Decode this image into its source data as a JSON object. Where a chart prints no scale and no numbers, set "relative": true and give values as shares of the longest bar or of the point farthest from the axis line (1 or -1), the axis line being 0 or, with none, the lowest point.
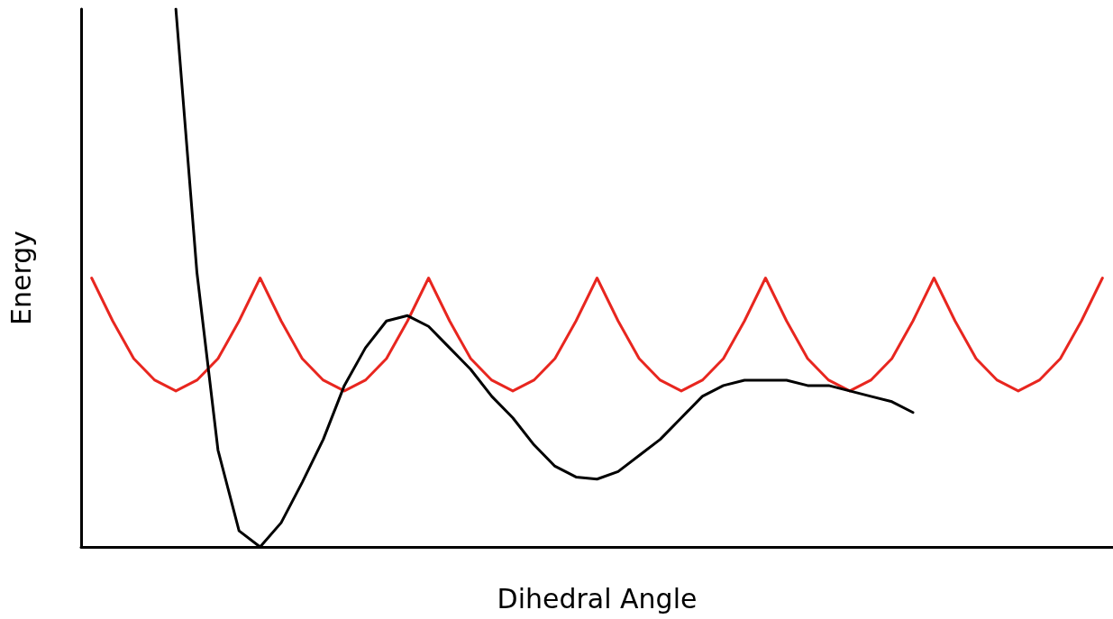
{
  "chart_data": {
    "type": "line",
    "xlabel": "Dihedral Angle",
    "ylabel": "Energy",
    "relative": true,
    "grid": false,
    "marker": "none",
    "line_style": "solid",
    "categories": [
      null,
      null,
      null,
      null,
      null,
      null,
      null,
      null,
      null,
      null,
      null,
      null,
      null,
      null,
      null,
      null,
      null,
      null,
      null,
      null,
      null,
      null,
      null,
      null,
      null,
      null,
      null,
      null,
      null,
      null,
      null,
      null,
      null,
      null,
      null,
      null,
      null,
      null,
      null,
      null,
      null,
      null,
      null,
      null,
      null,
      null,
      null,
      null,
      null
    ],
    "series": [
      {
        "color": "#e8261f",
        "values": [
          0.5,
          0.42,
          0.35,
          0.31,
          0.29,
          0.31,
          0.35,
          0.42,
          0.5,
          0.42,
          0.35,
          0.31,
          0.29,
          0.31,
          0.35,
          0.42,
          0.5,
          0.42,
          0.35,
          0.31,
          0.29,
          0.31,
          0.35,
          0.42,
          0.5,
          0.42,
          0.35,
          0.31,
          0.29,
          0.31,
          0.35,
          0.42,
          0.5,
          0.42,
          0.35,
          0.31,
          0.29,
          0.31,
          0.35,
          0.42,
          0.5,
          0.42,
          0.35,
          0.31,
          0.29,
          0.31,
          0.35,
          0.42,
          0.5
        ]
      },
      {
        "color": "#000000",
        "values": [
          null,
          null,
          null,
          null,
          1.0,
          0.51,
          0.18,
          0.03,
          0.0,
          0.045,
          0.12,
          0.2,
          0.3,
          0.37,
          0.42,
          0.43,
          0.41,
          0.37,
          0.33,
          0.28,
          0.24,
          0.19,
          0.15,
          0.13,
          0.126,
          0.14,
          0.17,
          0.2,
          0.24,
          0.28,
          0.3,
          0.31,
          0.31,
          0.31,
          0.3,
          0.3,
          0.29,
          0.28,
          0.27,
          0.25,
          null,
          null,
          null,
          null,
          null,
          null,
          null,
          null,
          null
        ]
      }
    ]
  }
}
